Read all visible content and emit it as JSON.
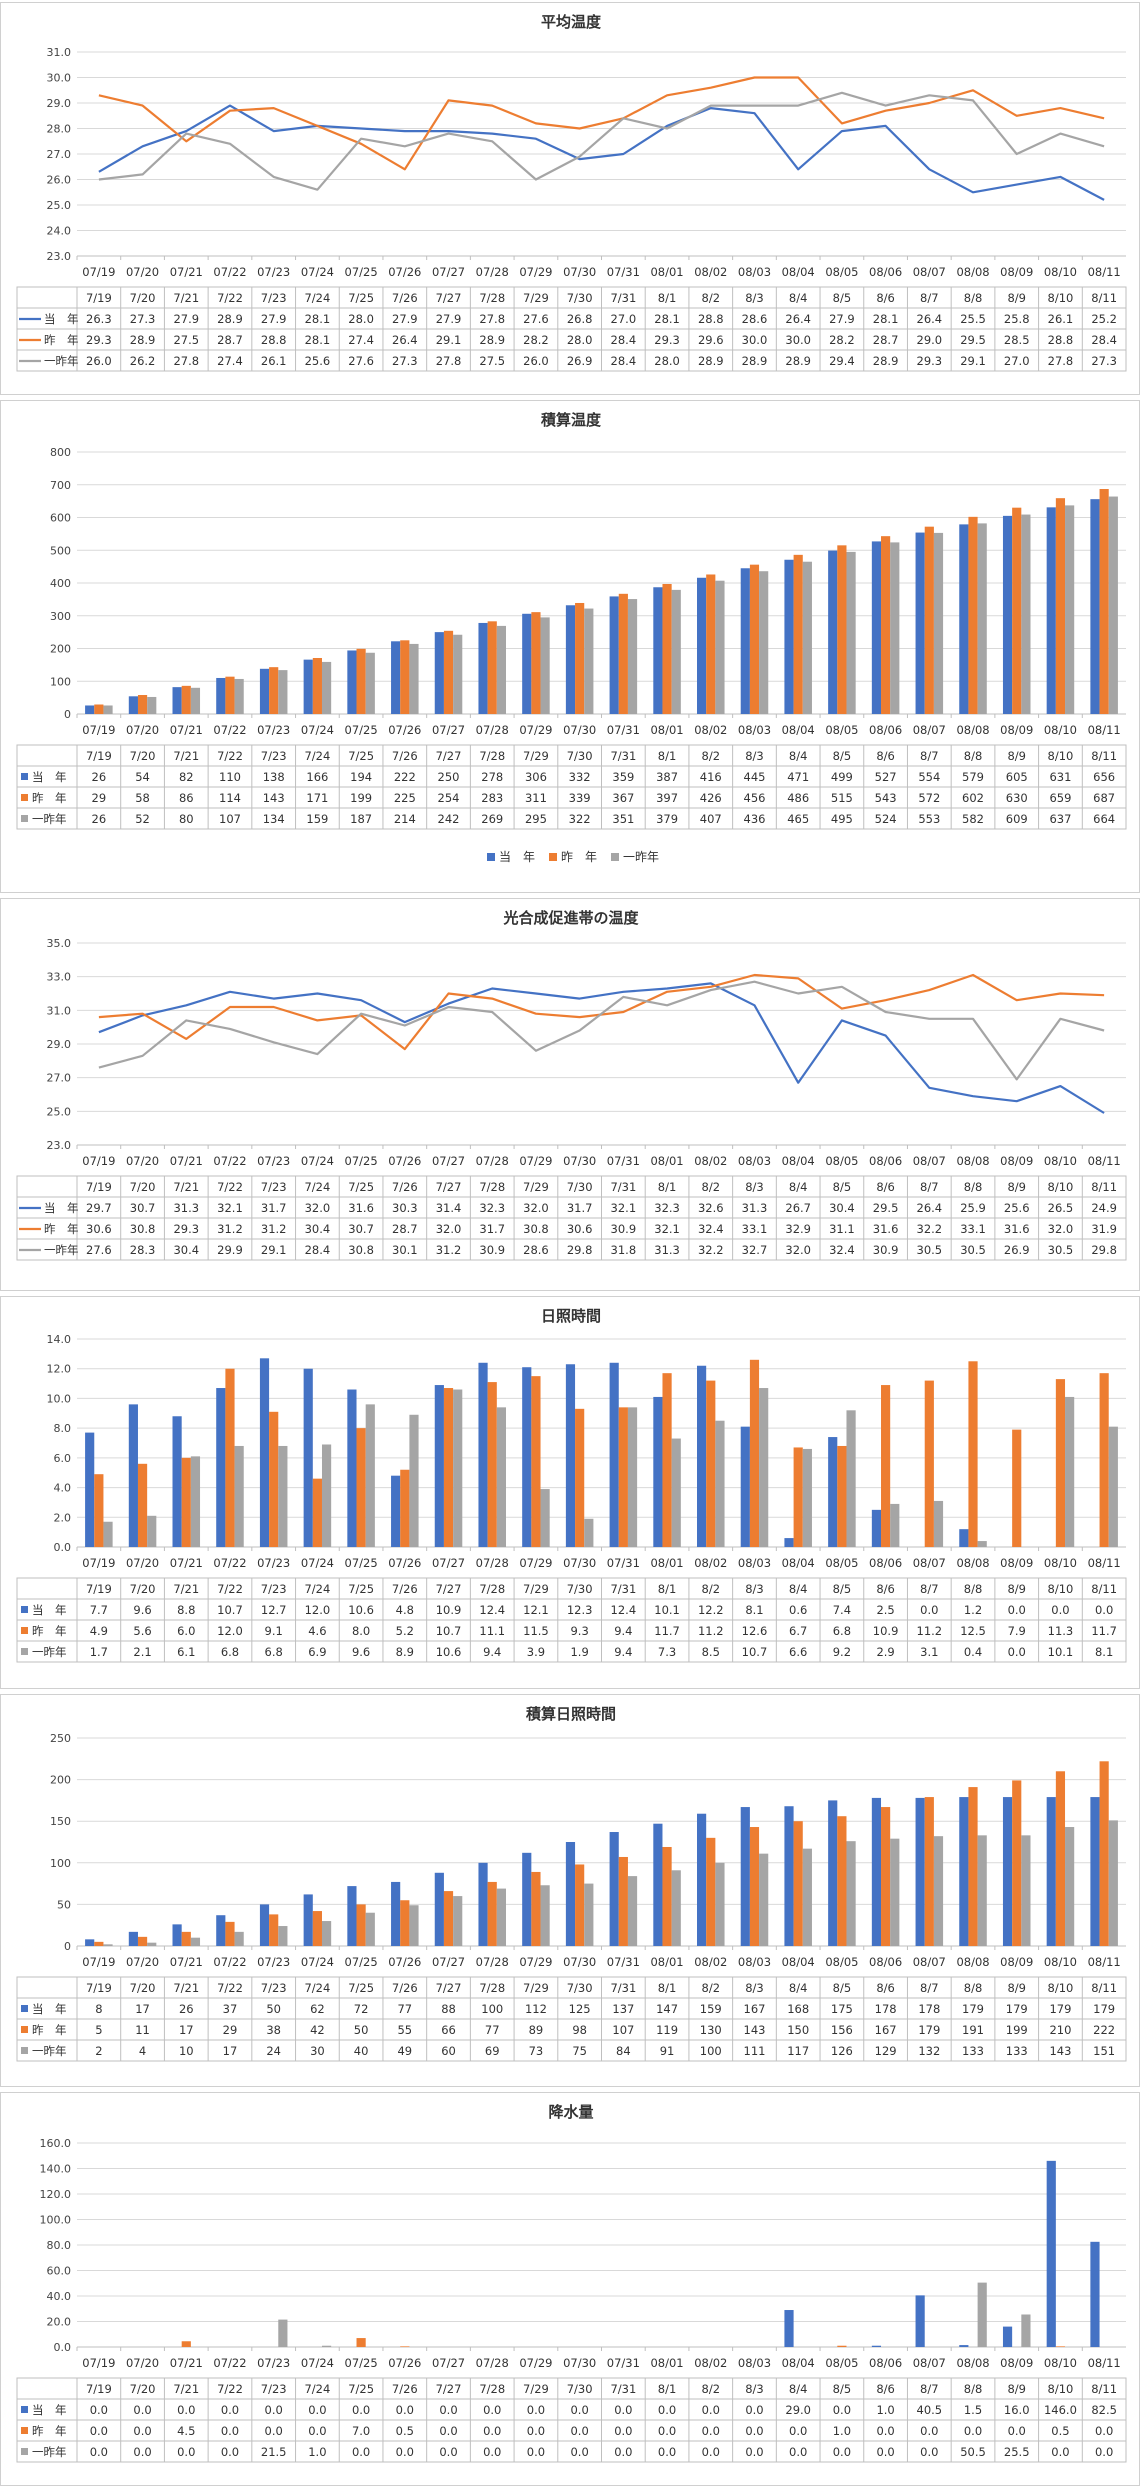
{
  "colors": {
    "current": "#4472C4",
    "last": "#ED7D31",
    "twoago": "#A5A5A5"
  },
  "categories": [
    "07/19",
    "07/20",
    "07/21",
    "07/22",
    "07/23",
    "07/24",
    "07/25",
    "07/26",
    "07/27",
    "07/28",
    "07/29",
    "07/30",
    "07/31",
    "08/01",
    "08/02",
    "08/03",
    "08/04",
    "08/05",
    "08/06",
    "08/07",
    "08/08",
    "08/09",
    "08/10",
    "08/11"
  ],
  "table_dates": [
    "7/19",
    "7/20",
    "7/21",
    "7/22",
    "7/23",
    "7/24",
    "7/25",
    "7/26",
    "7/27",
    "7/28",
    "7/29",
    "7/30",
    "7/31",
    "8/1",
    "8/2",
    "8/3",
    "8/4",
    "8/5",
    "8/6",
    "8/7",
    "8/8",
    "8/9",
    "8/10",
    "8/11"
  ],
  "chart_data": [
    {
      "type": "line",
      "title": "平均温度",
      "ylim": [
        23.0,
        31.0
      ],
      "yticks": [
        23.0,
        24.0,
        25.0,
        26.0,
        27.0,
        28.0,
        29.0,
        30.0,
        31.0
      ],
      "ytick_decimals": 1,
      "value_decimals": 1,
      "grid": true,
      "legend": "table",
      "series": [
        {
          "name": "当　年",
          "values": [
            26.3,
            27.3,
            27.9,
            28.9,
            27.9,
            28.1,
            28.0,
            27.9,
            27.9,
            27.8,
            27.6,
            26.8,
            27.0,
            28.1,
            28.8,
            28.6,
            26.4,
            27.9,
            28.1,
            26.4,
            25.5,
            25.8,
            26.1,
            25.2
          ]
        },
        {
          "name": "昨　年",
          "values": [
            29.3,
            28.9,
            27.5,
            28.7,
            28.8,
            28.1,
            27.4,
            26.4,
            29.1,
            28.9,
            28.2,
            28.0,
            28.4,
            29.3,
            29.6,
            30.0,
            30.0,
            28.2,
            28.7,
            29.0,
            29.5,
            28.5,
            28.8,
            28.4
          ]
        },
        {
          "name": "一昨年",
          "values": [
            26.0,
            26.2,
            27.8,
            27.4,
            26.1,
            25.6,
            27.6,
            27.3,
            27.8,
            27.5,
            26.0,
            26.9,
            28.4,
            28.0,
            28.9,
            28.9,
            28.9,
            29.4,
            28.9,
            29.3,
            29.1,
            27.0,
            27.8,
            27.3
          ]
        }
      ]
    },
    {
      "type": "bar",
      "title": "積算温度",
      "ylim": [
        0,
        800
      ],
      "yticks": [
        0,
        100,
        200,
        300,
        400,
        500,
        600,
        700,
        800
      ],
      "ytick_decimals": 0,
      "value_decimals": 0,
      "grid": true,
      "legend": "bottom",
      "series": [
        {
          "name": "当　年",
          "values": [
            26,
            54,
            82,
            110,
            138,
            166,
            194,
            222,
            250,
            278,
            306,
            332,
            359,
            387,
            416,
            445,
            471,
            499,
            527,
            554,
            579,
            605,
            631,
            656
          ]
        },
        {
          "name": "昨　年",
          "values": [
            29,
            58,
            86,
            114,
            143,
            171,
            199,
            225,
            254,
            283,
            311,
            339,
            367,
            397,
            426,
            456,
            486,
            515,
            543,
            572,
            602,
            630,
            659,
            687
          ]
        },
        {
          "name": "一昨年",
          "values": [
            26,
            52,
            80,
            107,
            134,
            159,
            187,
            214,
            242,
            269,
            295,
            322,
            351,
            379,
            407,
            436,
            465,
            495,
            524,
            553,
            582,
            609,
            637,
            664
          ]
        }
      ]
    },
    {
      "type": "line",
      "title": "光合成促進帯の温度",
      "ylim": [
        23.0,
        35.0
      ],
      "yticks": [
        23.0,
        25.0,
        27.0,
        29.0,
        31.0,
        33.0,
        35.0
      ],
      "ytick_decimals": 1,
      "value_decimals": 1,
      "grid": true,
      "legend": "table",
      "series": [
        {
          "name": "当　年",
          "values": [
            29.7,
            30.7,
            31.3,
            32.1,
            31.7,
            32.0,
            31.6,
            30.3,
            31.4,
            32.3,
            32.0,
            31.7,
            32.1,
            32.3,
            32.6,
            31.3,
            26.7,
            30.4,
            29.5,
            26.4,
            25.9,
            25.6,
            26.5,
            24.9
          ]
        },
        {
          "name": "昨　年",
          "values": [
            30.6,
            30.8,
            29.3,
            31.2,
            31.2,
            30.4,
            30.7,
            28.7,
            32.0,
            31.7,
            30.8,
            30.6,
            30.9,
            32.1,
            32.4,
            33.1,
            32.9,
            31.1,
            31.6,
            32.2,
            33.1,
            31.6,
            32.0,
            31.9
          ]
        },
        {
          "name": "一昨年",
          "values": [
            27.6,
            28.3,
            30.4,
            29.9,
            29.1,
            28.4,
            30.8,
            30.1,
            31.2,
            30.9,
            28.6,
            29.8,
            31.8,
            31.3,
            32.2,
            32.7,
            32.0,
            32.4,
            30.9,
            30.5,
            30.5,
            26.9,
            30.5,
            29.8
          ]
        }
      ]
    },
    {
      "type": "bar",
      "title": "日照時間",
      "ylim": [
        0.0,
        14.0
      ],
      "yticks": [
        0.0,
        2.0,
        4.0,
        6.0,
        8.0,
        10.0,
        12.0,
        14.0
      ],
      "ytick_decimals": 1,
      "value_decimals": 1,
      "grid": true,
      "legend": "table",
      "series": [
        {
          "name": "当　年",
          "values": [
            7.7,
            9.6,
            8.8,
            10.7,
            12.7,
            12.0,
            10.6,
            4.8,
            10.9,
            12.4,
            12.1,
            12.3,
            12.4,
            10.1,
            12.2,
            8.1,
            0.6,
            7.4,
            2.5,
            0.0,
            1.2,
            0.0,
            0.0,
            0.0
          ]
        },
        {
          "name": "昨　年",
          "values": [
            4.9,
            5.6,
            6.0,
            12.0,
            9.1,
            4.6,
            8.0,
            5.2,
            10.7,
            11.1,
            11.5,
            9.3,
            9.4,
            11.7,
            11.2,
            12.6,
            6.7,
            6.8,
            10.9,
            11.2,
            12.5,
            7.9,
            11.3,
            11.7
          ]
        },
        {
          "name": "一昨年",
          "values": [
            1.7,
            2.1,
            6.1,
            6.8,
            6.8,
            6.9,
            9.6,
            8.9,
            10.6,
            9.4,
            3.9,
            1.9,
            9.4,
            7.3,
            8.5,
            10.7,
            6.6,
            9.2,
            2.9,
            3.1,
            0.4,
            0.0,
            10.1,
            8.1
          ]
        }
      ]
    },
    {
      "type": "bar",
      "title": "積算日照時間",
      "ylim": [
        0,
        250
      ],
      "yticks": [
        0,
        50,
        100,
        150,
        200,
        250
      ],
      "ytick_decimals": 0,
      "value_decimals": 0,
      "grid": true,
      "legend": "table",
      "series": [
        {
          "name": "当　年",
          "values": [
            8,
            17,
            26,
            37,
            50,
            62,
            72,
            77,
            88,
            100,
            112,
            125,
            137,
            147,
            159,
            167,
            168,
            175,
            178,
            178,
            179,
            179,
            179,
            179
          ]
        },
        {
          "name": "昨　年",
          "values": [
            5,
            11,
            17,
            29,
            38,
            42,
            50,
            55,
            66,
            77,
            89,
            98,
            107,
            119,
            130,
            143,
            150,
            156,
            167,
            179,
            191,
            199,
            210,
            222
          ]
        },
        {
          "name": "一昨年",
          "values": [
            2,
            4,
            10,
            17,
            24,
            30,
            40,
            49,
            60,
            69,
            73,
            75,
            84,
            91,
            100,
            111,
            117,
            126,
            129,
            132,
            133,
            133,
            143,
            151
          ]
        }
      ]
    },
    {
      "type": "bar",
      "title": "降水量",
      "ylim": [
        0.0,
        160.0
      ],
      "yticks": [
        0.0,
        20.0,
        40.0,
        60.0,
        80.0,
        100.0,
        120.0,
        140.0,
        160.0
      ],
      "ytick_decimals": 1,
      "value_decimals": 1,
      "grid": true,
      "legend": "table",
      "series": [
        {
          "name": "当　年",
          "values": [
            0.0,
            0.0,
            0.0,
            0.0,
            0.0,
            0.0,
            0.0,
            0.0,
            0.0,
            0.0,
            0.0,
            0.0,
            0.0,
            0.0,
            0.0,
            0.0,
            29.0,
            0.0,
            1.0,
            40.5,
            1.5,
            16.0,
            146.0,
            82.5
          ]
        },
        {
          "name": "昨　年",
          "values": [
            0.0,
            0.0,
            4.5,
            0.0,
            0.0,
            0.0,
            7.0,
            0.5,
            0.0,
            0.0,
            0.0,
            0.0,
            0.0,
            0.0,
            0.0,
            0.0,
            0.0,
            1.0,
            0.0,
            0.0,
            0.0,
            0.0,
            0.5,
            0.0
          ]
        },
        {
          "name": "一昨年",
          "values": [
            0.0,
            0.0,
            0.0,
            0.0,
            21.5,
            1.0,
            0.0,
            0.0,
            0.0,
            0.0,
            0.0,
            0.0,
            0.0,
            0.0,
            0.0,
            0.0,
            0.0,
            0.0,
            0.0,
            0.0,
            50.5,
            25.5,
            0.0,
            0.0
          ]
        }
      ]
    }
  ]
}
